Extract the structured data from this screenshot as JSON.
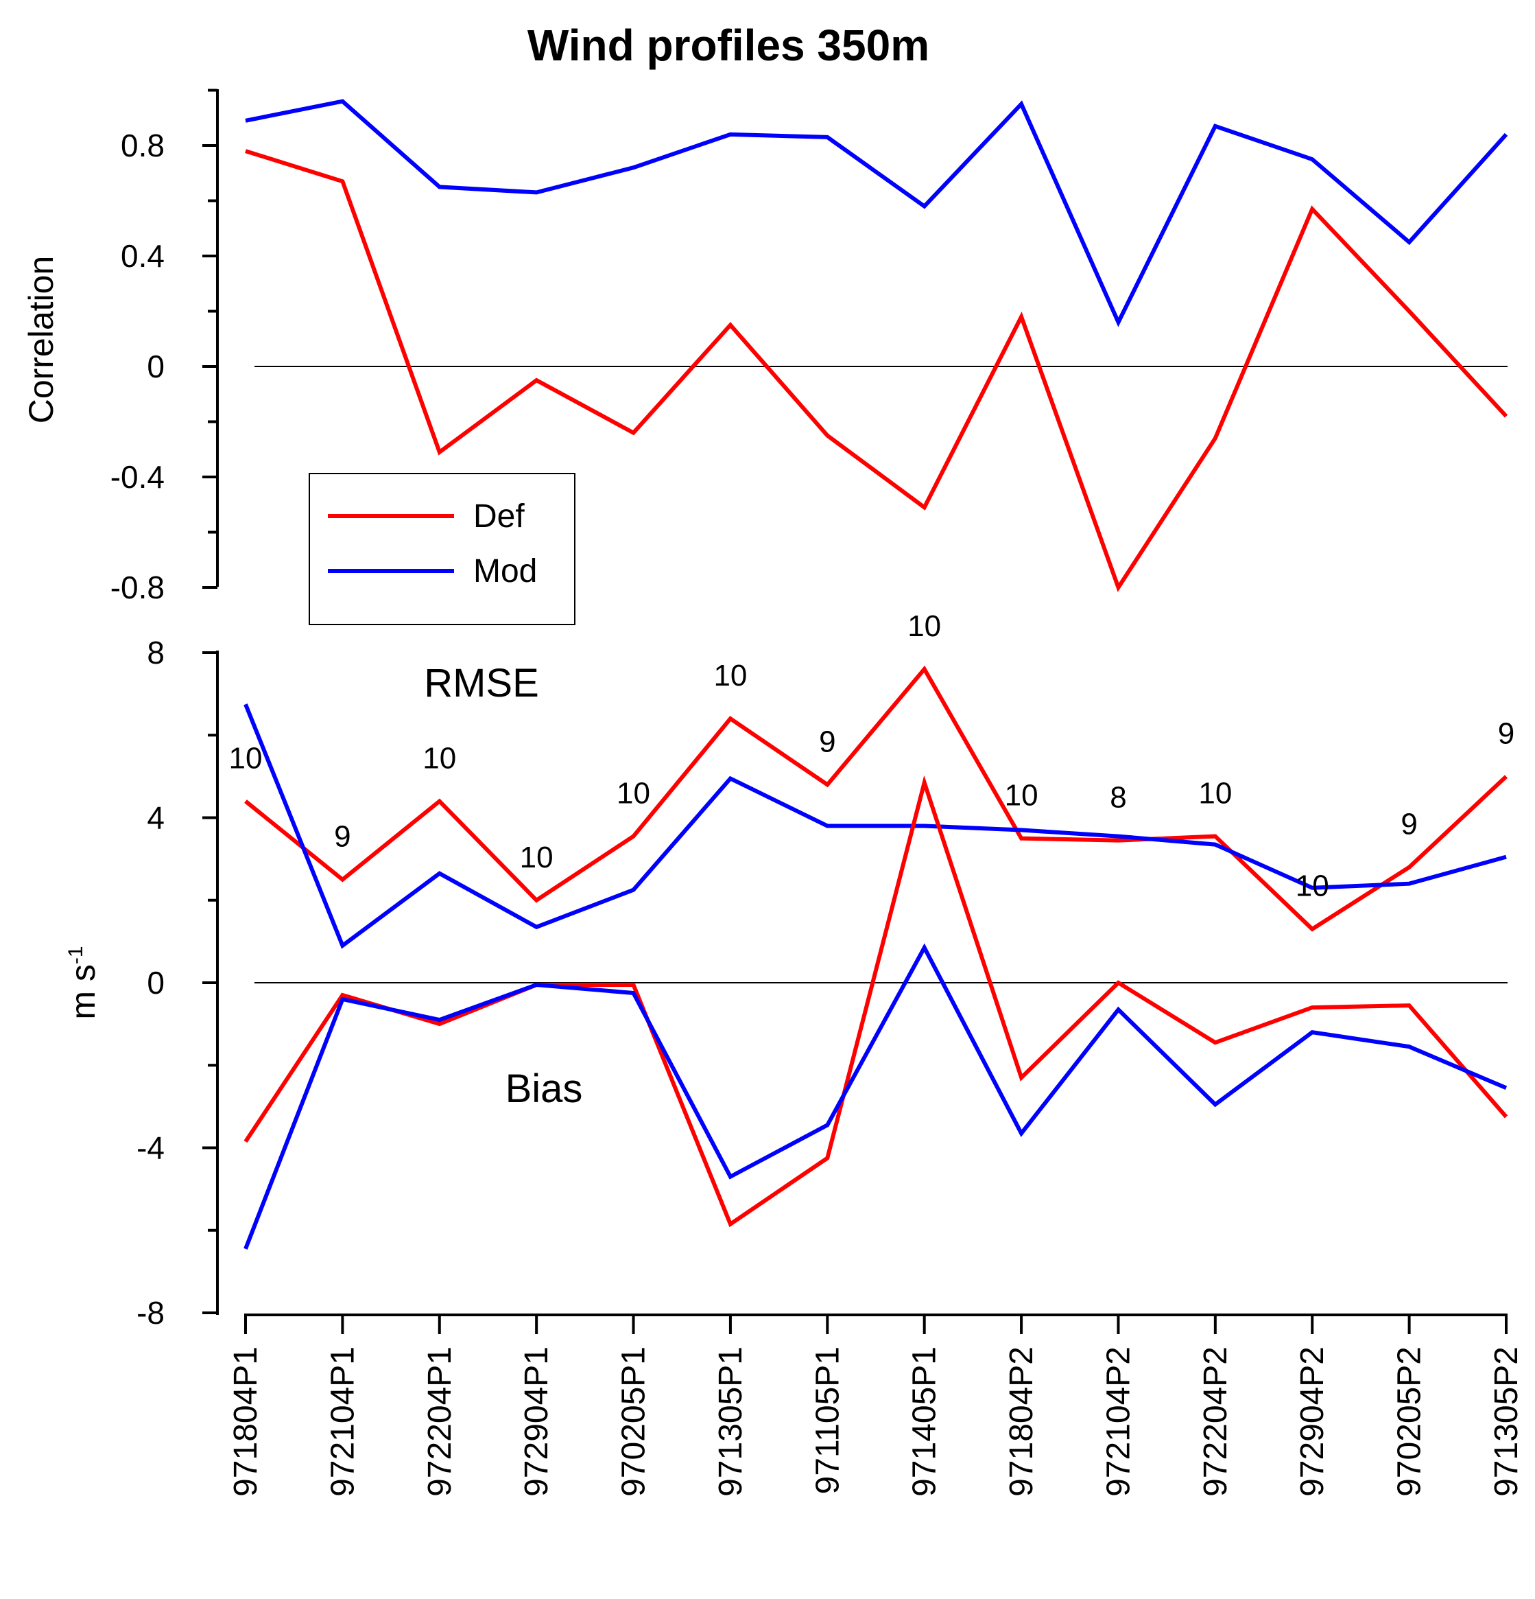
{
  "chart_data": [
    {
      "type": "line",
      "title": "Wind profiles 350m",
      "ylabel": "Correlation",
      "xlabel": "",
      "ylim": [
        -0.8,
        1.0
      ],
      "yticks": [
        "0.8",
        "0.4",
        "0",
        "-0.4",
        "-0.8"
      ],
      "categories": [
        "971804P1",
        "972104P1",
        "972204P1",
        "972904P1",
        "970205P1",
        "971305P1",
        "971105P1",
        "971405P1",
        "971804P2",
        "972104P2",
        "972204P2",
        "972904P2",
        "970205P2",
        "971305P2"
      ],
      "reference_line": 0,
      "series": [
        {
          "name": "Def",
          "color": "#ff0000",
          "values": [
            0.78,
            0.67,
            -0.31,
            -0.05,
            -0.24,
            0.15,
            -0.25,
            -0.51,
            0.18,
            -0.8,
            -0.26,
            0.57,
            0.2,
            -0.18
          ]
        },
        {
          "name": "Mod",
          "color": "#0000ff",
          "values": [
            0.89,
            0.96,
            0.65,
            0.63,
            0.72,
            0.84,
            0.83,
            0.58,
            0.95,
            0.16,
            0.87,
            0.75,
            0.45,
            0.84
          ]
        }
      ],
      "legend": {
        "position": "lower-left",
        "entries": [
          "Def",
          "Mod"
        ]
      }
    },
    {
      "type": "line",
      "ylabel": "m s",
      "ylabel_superscript": "-1",
      "ylim": [
        -8,
        8
      ],
      "yticks": [
        "8",
        "4",
        "0",
        "-4",
        "-8"
      ],
      "categories": [
        "971804P1",
        "972104P1",
        "972204P1",
        "972904P1",
        "970205P1",
        "971305P1",
        "971105P1",
        "971405P1",
        "971804P2",
        "972104P2",
        "972204P2",
        "972904P2",
        "970205P2",
        "971305P2"
      ],
      "reference_line": 0,
      "annotations": [
        "RMSE",
        "Bias"
      ],
      "sample_counts": [
        "10",
        "9",
        "10",
        "10",
        "10",
        "10",
        "9",
        "10",
        "10",
        "8",
        "10",
        "10",
        "9",
        "9"
      ],
      "series": [
        {
          "name": "Def RMSE",
          "color": "#ff0000",
          "values": [
            4.4,
            2.5,
            4.4,
            2.0,
            3.55,
            6.4,
            4.8,
            7.6,
            3.5,
            3.45,
            3.55,
            1.3,
            2.8,
            5.0
          ]
        },
        {
          "name": "Mod RMSE",
          "color": "#0000ff",
          "values": [
            6.75,
            0.9,
            2.65,
            1.35,
            2.25,
            4.95,
            3.8,
            3.8,
            3.7,
            3.55,
            3.35,
            2.3,
            2.4,
            3.05
          ]
        },
        {
          "name": "Def Bias",
          "color": "#ff0000",
          "values": [
            -3.85,
            -0.3,
            -1.0,
            -0.05,
            -0.05,
            -5.85,
            -4.25,
            4.85,
            -2.3,
            0.0,
            -1.45,
            -0.6,
            -0.55,
            -3.25
          ]
        },
        {
          "name": "Mod Bias",
          "color": "#0000ff",
          "values": [
            -6.45,
            -0.4,
            -0.9,
            -0.05,
            -0.25,
            -4.7,
            -3.45,
            0.85,
            -3.65,
            -0.65,
            -2.95,
            -1.2,
            -1.55,
            -2.55
          ]
        }
      ]
    }
  ]
}
